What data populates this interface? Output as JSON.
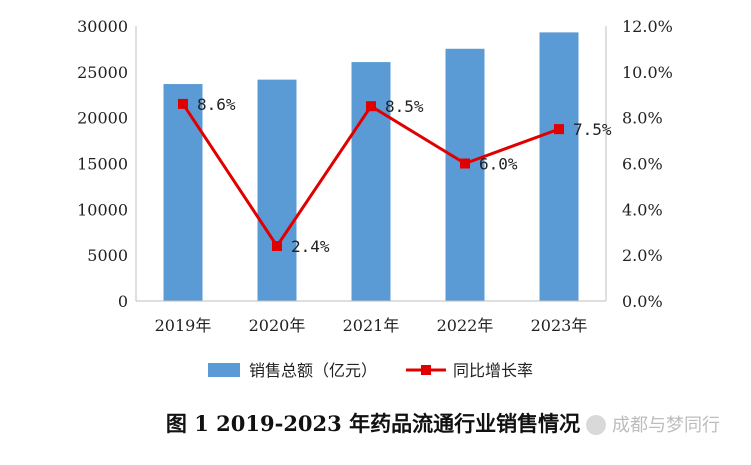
{
  "chart_data": {
    "type": "bar",
    "categories": [
      "2019年",
      "2020年",
      "2021年",
      "2022年",
      "2023年"
    ],
    "series": [
      {
        "name": "销售总额（亿元）",
        "type": "bar",
        "axis": "left",
        "color": "#5b9bd5",
        "values": [
          23668,
          24149,
          26064,
          27516,
          29304
        ]
      },
      {
        "name": "同比增长率",
        "type": "line",
        "axis": "right",
        "color": "#e00000",
        "values": [
          8.6,
          2.4,
          8.5,
          6.0,
          7.5
        ],
        "labels": [
          "8.6%",
          "2.4%",
          "8.5%",
          "6.0%",
          "7.5%"
        ]
      }
    ],
    "ylim": [
      0,
      30000
    ],
    "yticks": [
      "0",
      "5000",
      "10000",
      "15000",
      "20000",
      "25000",
      "30000"
    ],
    "y2lim": [
      0,
      12
    ],
    "y2ticks": [
      "0.0%",
      "2.0%",
      "4.0%",
      "6.0%",
      "8.0%",
      "10.0%",
      "12.0%"
    ],
    "grid": false,
    "legend_position": "bottom"
  },
  "caption": "图 1    2019-2023 年药品流通行业销售情况",
  "watermark": "成都与梦同行"
}
